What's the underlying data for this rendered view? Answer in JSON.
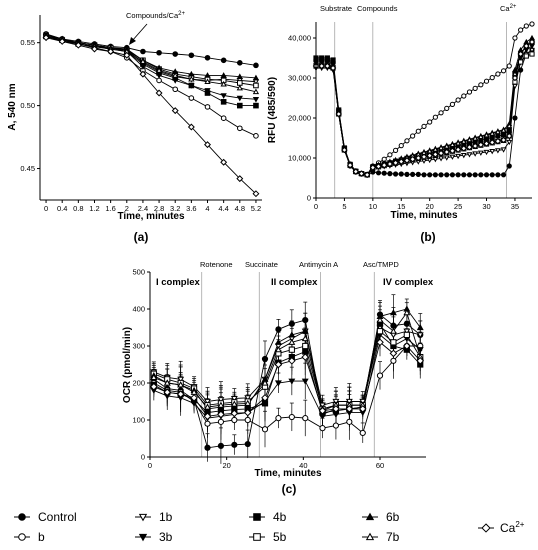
{
  "chart_data": [
    {
      "panel": "(a)",
      "type": "line",
      "xlabel": "Time, minutes",
      "ylabel": "A, 540 nm",
      "annotation": "Compounds/Ca",
      "annotation_sup": "2+",
      "xticks": [
        0,
        0.4,
        0.8,
        1.2,
        1.6,
        2.0,
        2.4,
        2.8,
        3.2,
        3.6,
        4.0,
        4.4,
        4.8,
        5.2
      ],
      "yticks": [
        0.45,
        0.5,
        0.55
      ],
      "xlim": [
        -0.15,
        5.35
      ],
      "ylim": [
        0.425,
        0.572
      ],
      "x": [
        0,
        0.4,
        0.8,
        1.2,
        1.6,
        2.0,
        2.4,
        2.8,
        3.2,
        3.6,
        4.0,
        4.4,
        4.8,
        5.2
      ],
      "series": [
        {
          "key": "control",
          "values": [
            0.556,
            0.553,
            0.551,
            0.549,
            0.547,
            0.546,
            0.543,
            0.542,
            0.541,
            0.54,
            0.538,
            0.536,
            0.534,
            0.532
          ]
        },
        {
          "key": "b",
          "values": [
            0.557,
            0.553,
            0.549,
            0.546,
            0.543,
            0.538,
            0.528,
            0.52,
            0.513,
            0.506,
            0.499,
            0.49,
            0.482,
            0.476
          ]
        },
        {
          "key": "1b",
          "values": [
            0.555,
            0.552,
            0.55,
            0.548,
            0.546,
            0.544,
            0.534,
            0.527,
            0.523,
            0.521,
            0.52,
            0.521,
            0.52,
            0.519
          ]
        },
        {
          "key": "3b",
          "values": [
            0.555,
            0.551,
            0.549,
            0.547,
            0.545,
            0.543,
            0.531,
            0.524,
            0.52,
            0.516,
            0.512,
            0.508,
            0.506,
            0.505
          ]
        },
        {
          "key": "4b",
          "values": [
            0.556,
            0.552,
            0.55,
            0.548,
            0.546,
            0.543,
            0.533,
            0.526,
            0.522,
            0.516,
            0.51,
            0.503,
            0.5,
            0.5
          ]
        },
        {
          "key": "5b",
          "values": [
            0.555,
            0.552,
            0.549,
            0.547,
            0.546,
            0.544,
            0.536,
            0.529,
            0.525,
            0.523,
            0.521,
            0.52,
            0.518,
            0.516
          ]
        },
        {
          "key": "6b",
          "values": [
            0.556,
            0.553,
            0.55,
            0.548,
            0.546,
            0.545,
            0.536,
            0.53,
            0.527,
            0.525,
            0.524,
            0.524,
            0.523,
            0.522
          ]
        },
        {
          "key": "7b",
          "values": [
            0.555,
            0.552,
            0.549,
            0.547,
            0.545,
            0.543,
            0.535,
            0.528,
            0.524,
            0.521,
            0.519,
            0.517,
            0.514,
            0.511
          ]
        },
        {
          "key": "ca",
          "values": [
            0.554,
            0.551,
            0.548,
            0.545,
            0.543,
            0.54,
            0.525,
            0.51,
            0.496,
            0.483,
            0.469,
            0.455,
            0.442,
            0.43
          ]
        }
      ]
    },
    {
      "panel": "(b)",
      "type": "line",
      "xlabel": "Time, minutes",
      "ylabel": "RFU (485/590)",
      "annotations": [
        "Substrate",
        "Compounds",
        "Ca"
      ],
      "ca_sup": "2+",
      "xticks": [
        0,
        5,
        10,
        15,
        20,
        25,
        30,
        35
      ],
      "yticks": [
        0,
        10000,
        20000,
        30000,
        40000
      ],
      "yticklabels": [
        "0",
        "10,000",
        "20,000",
        "30,000",
        "40,000"
      ],
      "xlim": [
        0,
        38
      ],
      "ylim": [
        0,
        44000
      ],
      "vlines": [
        3.3,
        10,
        33.5
      ],
      "x": [
        0,
        1,
        2,
        3,
        4,
        5,
        6,
        7,
        8,
        9,
        10,
        11,
        12,
        13,
        14,
        15,
        16,
        17,
        18,
        19,
        20,
        21,
        22,
        23,
        24,
        25,
        26,
        27,
        28,
        29,
        30,
        31,
        32,
        33,
        34,
        35,
        36,
        37,
        38
      ],
      "series": [
        {
          "key": "control",
          "values": [
            34500,
            34500,
            34500,
            34000,
            21000,
            12000,
            8000,
            6500,
            6000,
            5700,
            6500,
            6300,
            6200,
            6100,
            6000,
            6000,
            5900,
            5900,
            5900,
            5800,
            5800,
            5800,
            5800,
            5800,
            5800,
            5800,
            5800,
            5800,
            5800,
            5800,
            5800,
            5800,
            5800,
            5800,
            8000,
            20000,
            32000,
            36000,
            37000
          ]
        },
        {
          "key": "b",
          "values": [
            33500,
            33500,
            33500,
            33000,
            22000,
            12500,
            8500,
            6800,
            6200,
            5900,
            8000,
            8800,
            9700,
            10800,
            11900,
            13100,
            14300,
            15500,
            16700,
            17900,
            19000,
            20200,
            21300,
            22400,
            23400,
            24500,
            25500,
            26500,
            27400,
            28300,
            29200,
            30100,
            31000,
            31800,
            33000,
            40000,
            42000,
            43000,
            43500
          ]
        },
        {
          "key": "1b",
          "values": [
            32500,
            32500,
            32500,
            32000,
            21000,
            12000,
            8200,
            6600,
            6100,
            5800,
            7500,
            7700,
            7900,
            8100,
            8300,
            8500,
            8700,
            8900,
            9100,
            9300,
            9500,
            9700,
            9900,
            10100,
            10300,
            10500,
            10700,
            10900,
            11100,
            11300,
            11500,
            11700,
            11900,
            12100,
            14000,
            28000,
            34000,
            36000,
            37000
          ]
        },
        {
          "key": "3b",
          "values": [
            34000,
            34000,
            34000,
            33500,
            21500,
            12300,
            8300,
            6700,
            6100,
            5800,
            7600,
            7900,
            8200,
            8500,
            8800,
            9100,
            9400,
            9700,
            10000,
            10300,
            10600,
            10900,
            11200,
            11500,
            11800,
            12100,
            12400,
            12700,
            13000,
            13300,
            13600,
            13900,
            14200,
            14500,
            16000,
            30000,
            35000,
            37000,
            38000
          ]
        },
        {
          "key": "4b",
          "values": [
            35000,
            35000,
            35000,
            34500,
            22000,
            12500,
            8400,
            6700,
            6100,
            5800,
            7800,
            8100,
            8500,
            8800,
            9200,
            9500,
            9900,
            10200,
            10600,
            10900,
            11300,
            11600,
            12000,
            12300,
            12700,
            13000,
            13400,
            13700,
            14100,
            14400,
            14800,
            15100,
            15500,
            15800,
            17000,
            31000,
            36000,
            38000,
            39000
          ]
        },
        {
          "key": "5b",
          "values": [
            33000,
            33000,
            33000,
            32500,
            21000,
            12000,
            8200,
            6600,
            6100,
            5800,
            7500,
            7800,
            8100,
            8400,
            8700,
            9000,
            9300,
            9600,
            9900,
            10200,
            10500,
            10800,
            11100,
            11400,
            11700,
            12000,
            12300,
            12600,
            12900,
            13200,
            13500,
            13800,
            14100,
            14400,
            15500,
            29000,
            34000,
            35500,
            36000
          ]
        },
        {
          "key": "6b",
          "values": [
            34500,
            34500,
            34500,
            34000,
            21500,
            12300,
            8300,
            6700,
            6100,
            5800,
            7900,
            8300,
            8700,
            9100,
            9500,
            9900,
            10300,
            10700,
            11100,
            11500,
            11900,
            12300,
            12700,
            13100,
            13500,
            13900,
            14300,
            14700,
            15100,
            15500,
            15900,
            16300,
            16700,
            17100,
            18500,
            32000,
            37000,
            39000,
            40000
          ]
        },
        {
          "key": "7b",
          "values": [
            33500,
            33500,
            33500,
            33000,
            21000,
            12000,
            8200,
            6600,
            6100,
            5800,
            7700,
            8100,
            8500,
            8900,
            9300,
            9700,
            10100,
            10500,
            10900,
            11300,
            11700,
            12100,
            12500,
            12900,
            13300,
            13700,
            14100,
            14500,
            14900,
            15300,
            15700,
            16100,
            16500,
            16900,
            18000,
            31000,
            36000,
            38000,
            39000
          ]
        },
        {
          "key": "ca",
          "values": [
            33000,
            33000,
            33000,
            32500,
            21000,
            12000,
            8200,
            6600,
            6100,
            5800,
            7600,
            7900,
            8200,
            8500,
            8800,
            9100,
            9400,
            9700,
            10000,
            10300,
            10600,
            10900,
            11200,
            11500,
            11800,
            12100,
            12400,
            12700,
            13000,
            13300,
            13600,
            13900,
            14200,
            14500,
            15500,
            30000,
            36000,
            38000,
            39000
          ]
        }
      ]
    },
    {
      "panel": "(c)",
      "type": "line",
      "xlabel": "Time, minutes",
      "ylabel": "OCR (pmol/min)",
      "annotations": [
        "Rotenone",
        "Succinate",
        "Antimycin A",
        "Asc/TMPD"
      ],
      "complex_labels": [
        "I complex",
        "II complex",
        "IV complex"
      ],
      "xticks": [
        0,
        20,
        40,
        60
      ],
      "yticks": [
        0,
        100,
        200,
        300,
        400,
        500
      ],
      "xlim": [
        0,
        72
      ],
      "ylim": [
        0,
        500
      ],
      "vlines": [
        13.5,
        28.5,
        44.5,
        58.5
      ],
      "x": [
        1,
        4.5,
        8,
        11.5,
        15,
        18.5,
        22,
        25.5,
        30,
        33.5,
        37,
        40.5,
        45,
        48.5,
        52,
        55.5,
        60,
        63.5,
        67,
        70.5
      ],
      "series": [
        {
          "key": "control",
          "values": [
            210,
            185,
            180,
            155,
            25,
            30,
            33,
            35,
            265,
            345,
            360,
            370,
            115,
            130,
            130,
            135,
            385,
            355,
            360,
            330
          ]
        },
        {
          "key": "b",
          "values": [
            200,
            180,
            175,
            150,
            90,
            95,
            100,
            100,
            75,
            105,
            108,
            105,
            78,
            85,
            95,
            65,
            220,
            260,
            300,
            300
          ]
        },
        {
          "key": "1b",
          "values": [
            230,
            215,
            210,
            190,
            150,
            155,
            158,
            160,
            210,
            300,
            320,
            340,
            140,
            150,
            150,
            150,
            350,
            330,
            340,
            330
          ]
        },
        {
          "key": "3b",
          "values": [
            180,
            165,
            160,
            145,
            105,
            110,
            115,
            120,
            150,
            200,
            205,
            205,
            110,
            115,
            120,
            120,
            330,
            300,
            320,
            290
          ]
        },
        {
          "key": "4b",
          "values": [
            195,
            175,
            170,
            155,
            120,
            125,
            128,
            130,
            145,
            255,
            270,
            285,
            120,
            125,
            130,
            135,
            360,
            300,
            290,
            250
          ]
        },
        {
          "key": "5b",
          "values": [
            225,
            210,
            200,
            185,
            140,
            145,
            148,
            150,
            190,
            280,
            290,
            300,
            130,
            140,
            140,
            140,
            340,
            310,
            330,
            270
          ]
        },
        {
          "key": "6b",
          "values": [
            220,
            200,
            195,
            180,
            130,
            135,
            138,
            140,
            210,
            310,
            330,
            340,
            125,
            140,
            140,
            140,
            380,
            390,
            400,
            350
          ]
        },
        {
          "key": "7b",
          "values": [
            215,
            200,
            195,
            175,
            135,
            140,
            143,
            145,
            200,
            290,
            310,
            320,
            130,
            140,
            140,
            140,
            370,
            340,
            390,
            270
          ]
        },
        {
          "key": "ca",
          "values": [
            190,
            175,
            170,
            160,
            110,
            115,
            118,
            120,
            160,
            250,
            260,
            270,
            125,
            130,
            130,
            130,
            310,
            280,
            300,
            260
          ]
        }
      ]
    }
  ],
  "captions": {
    "a": "(a)",
    "b": "(b)",
    "c": "(c)"
  },
  "legend": [
    {
      "key": "control",
      "label": "Control",
      "marker": "filled-circle"
    },
    {
      "key": "b",
      "label": "b",
      "marker": "open-circle"
    },
    {
      "key": "1b",
      "label": "1b",
      "marker": "open-triangle-down"
    },
    {
      "key": "3b",
      "label": "3b",
      "marker": "filled-triangle-down"
    },
    {
      "key": "4b",
      "label": "4b",
      "marker": "filled-square"
    },
    {
      "key": "5b",
      "label": "5b",
      "marker": "open-square"
    },
    {
      "key": "6b",
      "label": "6b",
      "marker": "filled-triangle-up"
    },
    {
      "key": "7b",
      "label": "7b",
      "marker": "open-triangle-up"
    },
    {
      "key": "ca",
      "label": "Ca",
      "sup": "2+",
      "marker": "open-diamond"
    }
  ],
  "colors": {
    "line": "#000000",
    "vline": "#999999"
  }
}
